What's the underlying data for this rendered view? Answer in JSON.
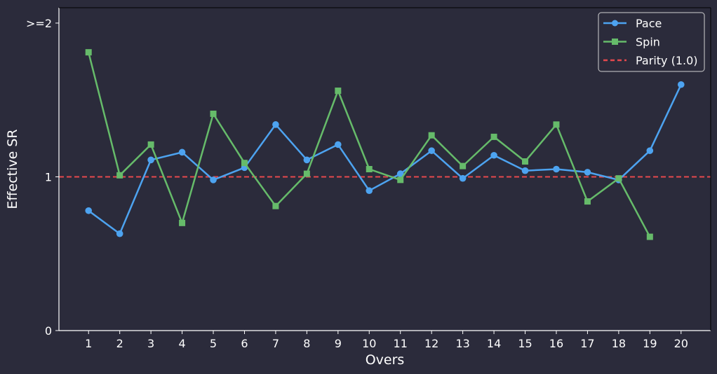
{
  "chart_data": {
    "type": "line",
    "xlabel": "Overs",
    "ylabel": "Effective SR",
    "xlim": [
      0.05,
      20.95
    ],
    "ylim": [
      0,
      2.1
    ],
    "x_ticks": [
      1,
      2,
      3,
      4,
      5,
      6,
      7,
      8,
      9,
      10,
      11,
      12,
      13,
      14,
      15,
      16,
      17,
      18,
      19,
      20
    ],
    "y_ticks": [
      {
        "value": 0,
        "label": "0"
      },
      {
        "value": 1,
        "label": "1"
      },
      {
        "value": 2,
        "label": ">=2"
      }
    ],
    "grid": false,
    "legend_position": "top-right",
    "series": [
      {
        "name": "Pace",
        "color": "#4da3f0",
        "marker": "circle",
        "x": [
          1,
          2,
          3,
          4,
          5,
          6,
          7,
          8,
          9,
          10,
          11,
          12,
          13,
          14,
          15,
          16,
          17,
          18,
          19,
          20
        ],
        "values": [
          0.78,
          0.63,
          1.11,
          1.16,
          0.98,
          1.06,
          1.34,
          1.11,
          1.21,
          0.91,
          1.02,
          1.17,
          0.99,
          1.14,
          1.04,
          1.05,
          1.03,
          0.98,
          1.17,
          1.6
        ]
      },
      {
        "name": "Spin",
        "color": "#66bb6a",
        "marker": "square",
        "x": [
          1,
          2,
          3,
          4,
          5,
          6,
          7,
          8,
          9,
          10,
          11,
          12,
          13,
          14,
          15,
          16,
          17,
          18,
          19
        ],
        "values": [
          1.81,
          1.01,
          1.21,
          0.7,
          1.41,
          1.09,
          0.81,
          1.02,
          1.56,
          1.05,
          0.98,
          1.27,
          1.07,
          1.26,
          1.1,
          1.34,
          0.84,
          0.99,
          0.61
        ]
      }
    ],
    "reference_lines": [
      {
        "name": "Parity (1.0)",
        "y": 1.0,
        "color": "#e5484d",
        "style": "dashed"
      }
    ]
  }
}
